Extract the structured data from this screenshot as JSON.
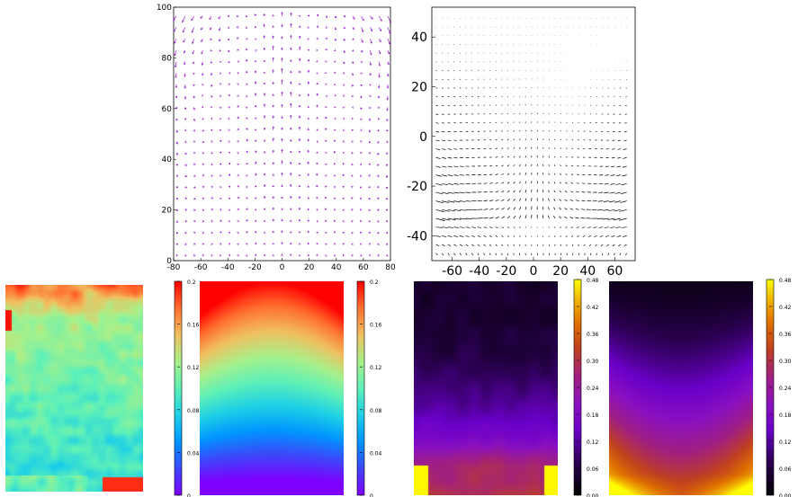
{
  "chart_data": [
    {
      "id": "quiver_purple",
      "type": "scatter",
      "description_kind": "vector-field",
      "color": "#9a1ad0",
      "xlim": [
        -80,
        80
      ],
      "ylim": [
        0,
        100
      ],
      "x_ticks": [
        "-80",
        "-60",
        "-40",
        "-20",
        "0",
        "20",
        "40",
        "60",
        "80"
      ],
      "y_ticks": [
        "0",
        "20",
        "40",
        "60",
        "80",
        "100"
      ]
    },
    {
      "id": "quiver_black",
      "type": "scatter",
      "description_kind": "vector-field",
      "color": "#000000",
      "xlim": [
        -75,
        75
      ],
      "ylim": [
        -50,
        52
      ],
      "x_ticks": [
        "-60",
        "-40",
        "-20",
        "0",
        "20",
        "40",
        "60"
      ],
      "y_ticks": [
        "40",
        "20",
        "0",
        "-20",
        "-40"
      ]
    },
    {
      "id": "heatmap_jet_noisy",
      "type": "heatmap",
      "colormap": "jet",
      "colorbar": {
        "min": 0,
        "max": 0.2,
        "ticks": [
          "0.2",
          "0.16",
          "0.12",
          "0.08",
          "0.04",
          "0"
        ]
      }
    },
    {
      "id": "heatmap_jet_smooth",
      "type": "heatmap",
      "colormap": "jet",
      "colorbar": {
        "min": 0,
        "max": 0.2,
        "ticks": [
          "0.2",
          "0.16",
          "0.12",
          "0.08",
          "0.04",
          "0"
        ]
      }
    },
    {
      "id": "heatmap_gnuplot_noisy",
      "type": "heatmap",
      "colormap": "gnuplot",
      "colorbar": {
        "min": 0,
        "max": 0.48,
        "ticks": [
          "0.48",
          "0.42",
          "0.36",
          "0.30",
          "0.24",
          "0.18",
          "0.12",
          "0.06",
          "0.00"
        ]
      }
    },
    {
      "id": "heatmap_gnuplot_smooth",
      "type": "heatmap",
      "colormap": "gnuplot",
      "colorbar": {
        "min": 0,
        "max": 0.48,
        "ticks": [
          "0.48",
          "0.42",
          "0.36",
          "0.30",
          "0.24",
          "0.18",
          "0.12",
          "0.06",
          "0.00"
        ]
      }
    }
  ]
}
